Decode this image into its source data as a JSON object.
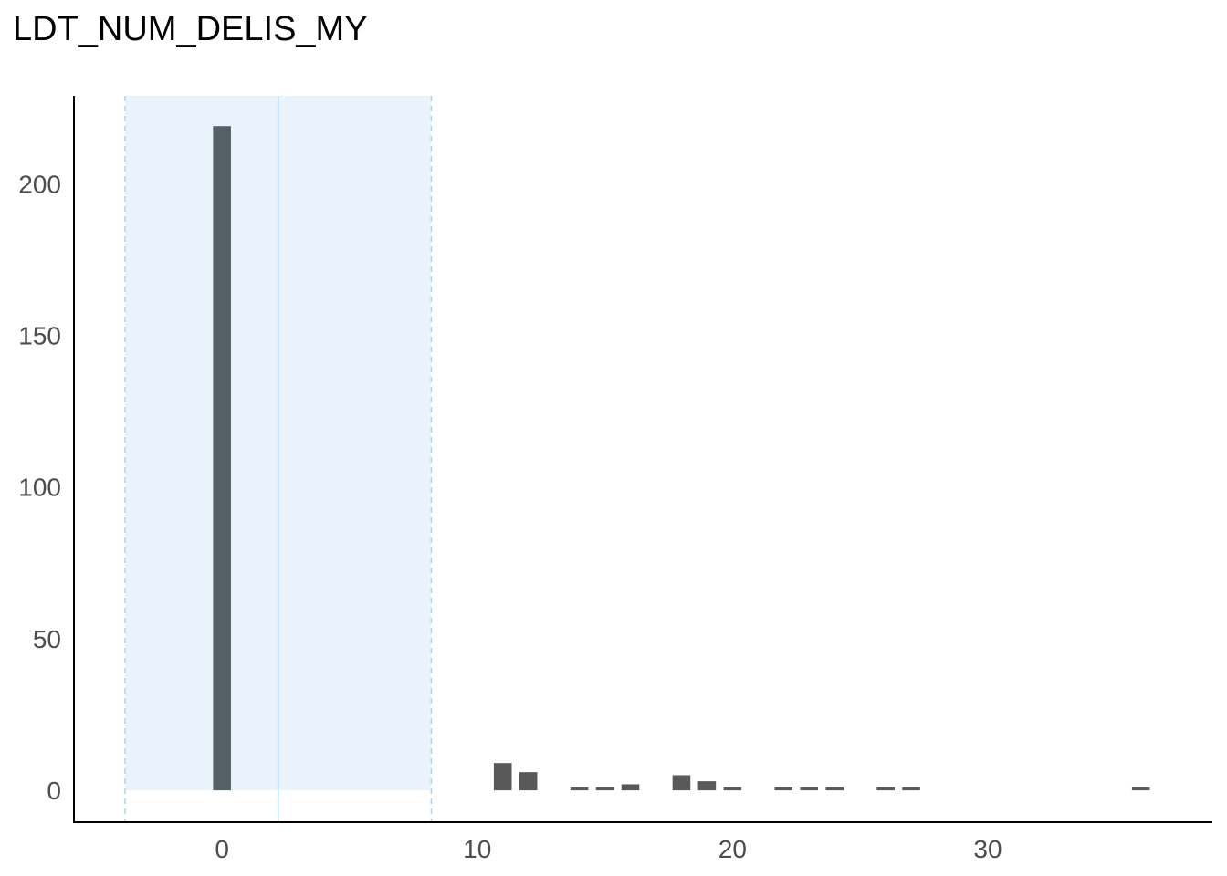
{
  "chart_data": {
    "type": "bar",
    "title": "LDT_NUM_DELIS_MY",
    "xlabel": "",
    "ylabel": "",
    "xlim": [
      -5.8,
      38.8
    ],
    "ylim": [
      -10.5,
      229
    ],
    "x_ticks": [
      0,
      10,
      20,
      30
    ],
    "y_ticks": [
      0,
      50,
      100,
      150,
      200
    ],
    "x_tick_labels": [
      "0",
      "10",
      "20",
      "30"
    ],
    "y_tick_labels": [
      "0",
      "50",
      "100",
      "150",
      "200"
    ],
    "bar_width": 0.7,
    "bars": [
      {
        "x": 0,
        "y": 219,
        "highlight": true
      },
      {
        "x": 11,
        "y": 9,
        "highlight": false
      },
      {
        "x": 12,
        "y": 6,
        "highlight": false
      },
      {
        "x": 14,
        "y": 1,
        "highlight": false
      },
      {
        "x": 15,
        "y": 1,
        "highlight": false
      },
      {
        "x": 16,
        "y": 2,
        "highlight": false
      },
      {
        "x": 18,
        "y": 5,
        "highlight": false
      },
      {
        "x": 19,
        "y": 3,
        "highlight": false
      },
      {
        "x": 20,
        "y": 1,
        "highlight": false
      },
      {
        "x": 22,
        "y": 1,
        "highlight": false
      },
      {
        "x": 23,
        "y": 1,
        "highlight": false
      },
      {
        "x": 24,
        "y": 1,
        "highlight": false
      },
      {
        "x": 26,
        "y": 1,
        "highlight": false
      },
      {
        "x": 27,
        "y": 1,
        "highlight": false
      },
      {
        "x": 36,
        "y": 1,
        "highlight": false
      }
    ],
    "band": {
      "mean": 2.2,
      "lower": -3.8,
      "upper": 8.2
    },
    "grid": false,
    "colors": {
      "bar": "#595959",
      "bar_highlight": "#536066",
      "band_fill": "#eaf3fb",
      "band_line": "#b3d4e6",
      "axis": "#000000"
    }
  }
}
